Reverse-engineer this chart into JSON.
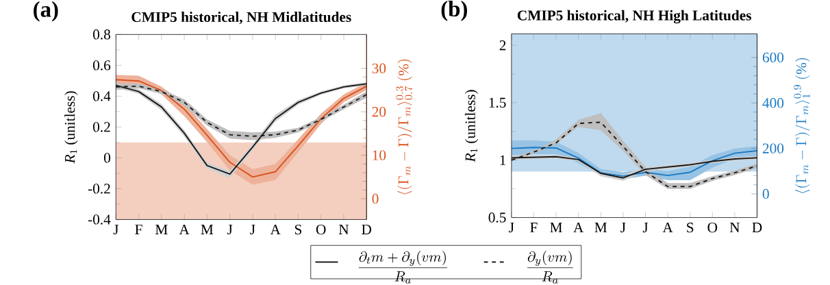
{
  "chart_data": [
    {
      "type": "line",
      "title": "CMIP5 historical, NH Midlatitudes",
      "annotations": [
        "(a)"
      ],
      "categories": [
        "J",
        "F",
        "M",
        "A",
        "M",
        "J",
        "J",
        "A",
        "S",
        "O",
        "N",
        "D"
      ],
      "ylabel": "*R*$_{1}$ (unitless)",
      "y2label": "\\langle(\\Gamma_m-\\Gamma)/\\Gamma_m\\rangle^{0.3}_{0.7}\\ (\\%)",
      "ylim": [
        -0.4,
        0.8
      ],
      "yticks": [
        -0.4,
        -0.2,
        0,
        0.2,
        0.4,
        0.6,
        0.8
      ],
      "y2lim": [
        -4.8,
        37.8
      ],
      "y2ticks": [
        0,
        10,
        20,
        30
      ],
      "legend": "bottom",
      "bands": [
        {
          "axis": "y",
          "from": -0.4,
          "to": 0.1,
          "color": "#f4cfc0"
        }
      ],
      "series": [
        {
          "name": "\\frac{\\partial_t m+\\partial_y(vm)}{R_a}",
          "color": "#1a1a1a",
          "line_style": "solid",
          "values": [
            0.47,
            0.43,
            0.33,
            0.16,
            -0.05,
            -0.105,
            0.07,
            0.255,
            0.36,
            0.42,
            0.46,
            0.48
          ],
          "lower": [
            0.455,
            0.415,
            0.31,
            0.14,
            -0.07,
            -0.13,
            0.05,
            0.235,
            0.345,
            0.41,
            0.45,
            0.47
          ],
          "upper": [
            0.485,
            0.445,
            0.35,
            0.18,
            -0.03,
            -0.085,
            0.09,
            0.28,
            0.375,
            0.43,
            0.47,
            0.49
          ]
        },
        {
          "name": "\\frac{\\partial_y(vm)}{R_a}",
          "color": "#1a1a1a",
          "line_style": "dashed",
          "values": [
            0.46,
            0.465,
            0.43,
            0.36,
            0.23,
            0.15,
            0.14,
            0.15,
            0.18,
            0.25,
            0.33,
            0.41
          ],
          "lower": [
            0.44,
            0.45,
            0.415,
            0.34,
            0.21,
            0.125,
            0.115,
            0.13,
            0.165,
            0.235,
            0.315,
            0.39
          ],
          "upper": [
            0.48,
            0.48,
            0.445,
            0.38,
            0.25,
            0.175,
            0.165,
            0.17,
            0.195,
            0.265,
            0.345,
            0.43
          ]
        },
        {
          "color": "#d9531e",
          "line_style": "solid",
          "axis": "y2",
          "values": [
            27.4,
            27.1,
            24.9,
            20.6,
            14.6,
            8.4,
            5.0,
            6.2,
            12.2,
            18.4,
            23.1,
            25.9
          ],
          "lower": [
            26.3,
            26,
            24,
            19,
            13,
            6.5,
            3.2,
            4.3,
            10.7,
            17.2,
            22.2,
            25
          ],
          "upper": [
            28.5,
            28.3,
            25.8,
            22,
            16,
            10,
            6.8,
            8,
            13.7,
            19.6,
            24,
            26.8
          ]
        }
      ]
    },
    {
      "type": "line",
      "title": "CMIP5 historical, NH High Latitudes",
      "annotations": [
        "(b)"
      ],
      "categories": [
        "J",
        "F",
        "M",
        "A",
        "M",
        "J",
        "J",
        "A",
        "S",
        "O",
        "N",
        "D"
      ],
      "ylabel": "*R*$_{1}$ (unitless)",
      "y2label": "\\langle(\\Gamma_m-\\Gamma)/\\Gamma_m\\rangle^{0.9}_{1}\\ (\\%)",
      "ylim": [
        0.5,
        2.1
      ],
      "yticks": [
        0.5,
        1,
        1.5,
        2
      ],
      "y2lim": [
        -104,
        704
      ],
      "y2ticks": [
        0,
        200,
        400,
        600
      ],
      "bands": [
        {
          "axis": "y",
          "from": 0.9,
          "to": 2.1,
          "color": "#bfdaee"
        }
      ],
      "series": [
        {
          "color": "#1a1a1a",
          "line_style": "solid",
          "values": [
            1.02,
            1.025,
            1.03,
            1.005,
            0.885,
            0.845,
            0.92,
            0.94,
            0.96,
            0.99,
            1.01,
            1.02
          ],
          "lower": [
            1.005,
            1.01,
            1.015,
            0.99,
            0.86,
            0.82,
            0.9,
            0.925,
            0.945,
            0.975,
            0.995,
            1.005
          ],
          "upper": [
            1.035,
            1.04,
            1.045,
            1.02,
            0.9,
            0.87,
            0.94,
            0.955,
            0.975,
            1.005,
            1.025,
            1.035
          ]
        },
        {
          "color": "#1a1a1a",
          "line_style": "dashed",
          "values": [
            1.0,
            1.07,
            1.15,
            1.32,
            1.33,
            1.12,
            0.9,
            0.77,
            0.77,
            0.84,
            0.89,
            0.95
          ],
          "lower": [
            0.99,
            1.06,
            1.14,
            1.29,
            1.26,
            1.08,
            0.87,
            0.75,
            0.75,
            0.82,
            0.87,
            0.93
          ],
          "upper": [
            1.02,
            1.08,
            1.18,
            1.35,
            1.41,
            1.17,
            0.94,
            0.8,
            0.8,
            0.86,
            0.91,
            0.97
          ]
        },
        {
          "color": "#1a7ac4",
          "line_style": "solid",
          "axis": "y2",
          "values": [
            200,
            204,
            202,
            157,
            93,
            78,
            95,
            81,
            95,
            146,
            179,
            190
          ],
          "lower": [
            170,
            175,
            175,
            135,
            80,
            65,
            80,
            60,
            60,
            115,
            155,
            165
          ],
          "upper": [
            235,
            235,
            230,
            180,
            110,
            95,
            110,
            100,
            120,
            170,
            200,
            210
          ]
        }
      ]
    }
  ]
}
